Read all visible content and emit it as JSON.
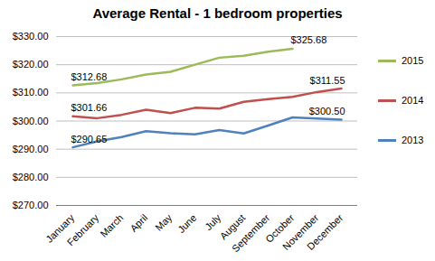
{
  "chart_data": {
    "type": "line",
    "title": "Average Rental - 1 bedroom properties",
    "categories": [
      "January",
      "February",
      "March",
      "April",
      "May",
      "June",
      "July",
      "August",
      "September",
      "October",
      "November",
      "December"
    ],
    "series": [
      {
        "name": "2015",
        "color": "#9bbb59",
        "values": [
          312.68,
          313.5,
          314.8,
          316.5,
          317.5,
          320.0,
          322.5,
          323.2,
          324.6,
          325.68,
          null,
          null
        ],
        "value_labels": [
          "$312.68",
          null,
          null,
          null,
          null,
          null,
          null,
          null,
          null,
          "$325.68",
          null,
          null
        ]
      },
      {
        "name": "2014",
        "color": "#c0504d",
        "values": [
          301.66,
          301.0,
          302.2,
          304.0,
          302.8,
          304.7,
          304.4,
          306.8,
          307.8,
          308.6,
          310.3,
          311.55
        ],
        "value_labels": [
          "$301.66",
          null,
          null,
          null,
          null,
          null,
          null,
          null,
          null,
          null,
          null,
          "$311.55"
        ]
      },
      {
        "name": "2013",
        "color": "#4f81bd",
        "values": [
          290.65,
          292.8,
          294.3,
          296.4,
          295.7,
          295.3,
          296.8,
          295.6,
          298.4,
          301.3,
          300.9,
          300.5
        ],
        "value_labels": [
          "$290.65",
          null,
          null,
          null,
          null,
          null,
          null,
          null,
          null,
          null,
          null,
          "$300.50"
        ]
      }
    ],
    "ylim": [
      270,
      330
    ],
    "yticks": [
      {
        "value": 270,
        "label": "$270.00"
      },
      {
        "value": 280,
        "label": "$280.00"
      },
      {
        "value": 290,
        "label": "$290.00"
      },
      {
        "value": 300,
        "label": "$300.00"
      },
      {
        "value": 310,
        "label": "$310.00"
      },
      {
        "value": 320,
        "label": "$320.00"
      },
      {
        "value": 330,
        "label": "$330.00"
      }
    ],
    "grid": true,
    "legend": "right"
  }
}
